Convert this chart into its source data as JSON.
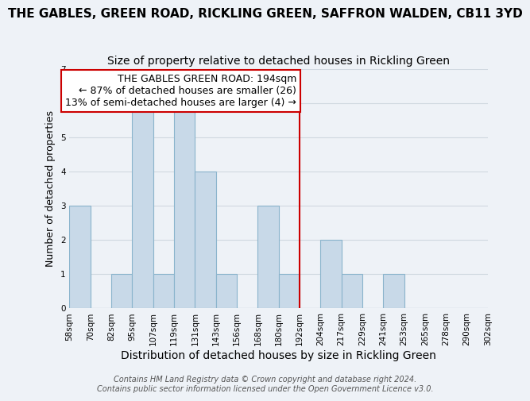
{
  "title": "THE GABLES, GREEN ROAD, RICKLING GREEN, SAFFRON WALDEN, CB11 3YD",
  "subtitle": "Size of property relative to detached houses in Rickling Green",
  "xlabel": "Distribution of detached houses by size in Rickling Green",
  "ylabel": "Number of detached properties",
  "bin_labels": [
    "58sqm",
    "70sqm",
    "82sqm",
    "95sqm",
    "107sqm",
    "119sqm",
    "131sqm",
    "143sqm",
    "156sqm",
    "168sqm",
    "180sqm",
    "192sqm",
    "204sqm",
    "217sqm",
    "229sqm",
    "241sqm",
    "253sqm",
    "265sqm",
    "278sqm",
    "290sqm",
    "302sqm"
  ],
  "bar_heights": [
    3,
    0,
    1,
    6,
    1,
    6,
    4,
    1,
    0,
    3,
    1,
    0,
    2,
    1,
    0,
    1,
    0,
    0,
    0,
    0
  ],
  "bar_color": "#c8d9e8",
  "bar_edge_color": "#8ab4cc",
  "grid_color": "#d0d8e0",
  "background_color": "#eef2f7",
  "vline_x": 11,
  "vline_color": "#cc0000",
  "annotation_text": "THE GABLES GREEN ROAD: 194sqm\n← 87% of detached houses are smaller (26)\n13% of semi-detached houses are larger (4) →",
  "annotation_box_color": "#ffffff",
  "annotation_border_color": "#cc0000",
  "ylim": [
    0,
    7
  ],
  "yticks": [
    0,
    1,
    2,
    3,
    4,
    5,
    6,
    7
  ],
  "footer_text": "Contains HM Land Registry data © Crown copyright and database right 2024.\nContains public sector information licensed under the Open Government Licence v3.0.",
  "title_fontsize": 11,
  "subtitle_fontsize": 10,
  "xlabel_fontsize": 10,
  "ylabel_fontsize": 9,
  "tick_fontsize": 7.5,
  "annotation_fontsize": 9,
  "footer_fontsize": 7
}
